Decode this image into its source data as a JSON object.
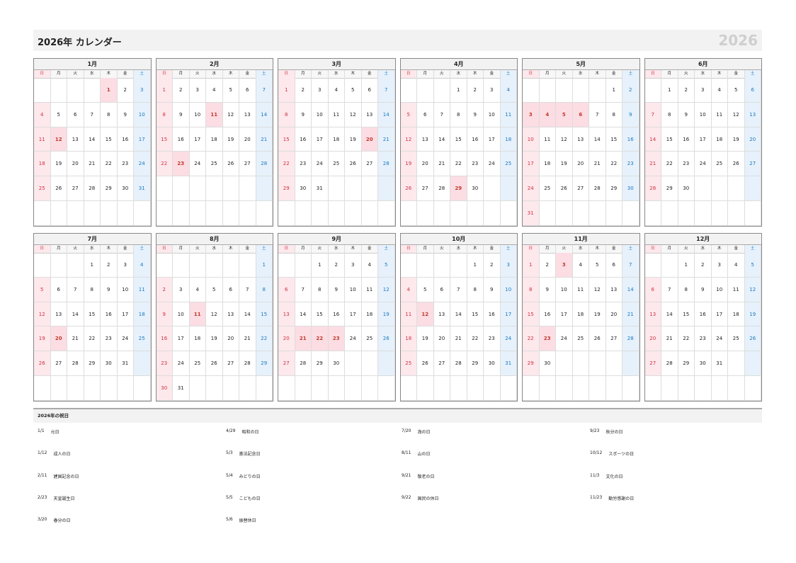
{
  "header": {
    "title": "2026年 カレンダー",
    "year": "2026"
  },
  "weekdays": [
    "日",
    "月",
    "火",
    "水",
    "木",
    "金",
    "土"
  ],
  "months": [
    {
      "name": "1月",
      "holidays": [
        1,
        12
      ],
      "weeks": [
        [
          null,
          null,
          null,
          null,
          1,
          2,
          3
        ],
        [
          4,
          5,
          6,
          7,
          8,
          9,
          10
        ],
        [
          11,
          12,
          13,
          14,
          15,
          16,
          17
        ],
        [
          18,
          19,
          20,
          21,
          22,
          23,
          24
        ],
        [
          25,
          26,
          27,
          28,
          29,
          30,
          31
        ],
        [
          null,
          null,
          null,
          null,
          null,
          null,
          null
        ]
      ]
    },
    {
      "name": "2月",
      "holidays": [
        11,
        23
      ],
      "weeks": [
        [
          1,
          2,
          3,
          4,
          5,
          6,
          7
        ],
        [
          8,
          9,
          10,
          11,
          12,
          13,
          14
        ],
        [
          15,
          16,
          17,
          18,
          19,
          20,
          21
        ],
        [
          22,
          23,
          24,
          25,
          26,
          27,
          28
        ],
        [
          null,
          null,
          null,
          null,
          null,
          null,
          null
        ],
        [
          null,
          null,
          null,
          null,
          null,
          null,
          null
        ]
      ]
    },
    {
      "name": "3月",
      "holidays": [
        20
      ],
      "weeks": [
        [
          1,
          2,
          3,
          4,
          5,
          6,
          7
        ],
        [
          8,
          9,
          10,
          11,
          12,
          13,
          14
        ],
        [
          15,
          16,
          17,
          18,
          19,
          20,
          21
        ],
        [
          22,
          23,
          24,
          25,
          26,
          27,
          28
        ],
        [
          29,
          30,
          31,
          null,
          null,
          null,
          null
        ],
        [
          null,
          null,
          null,
          null,
          null,
          null,
          null
        ]
      ]
    },
    {
      "name": "4月",
      "holidays": [
        29
      ],
      "weeks": [
        [
          null,
          null,
          null,
          1,
          2,
          3,
          4
        ],
        [
          5,
          6,
          7,
          8,
          9,
          10,
          11
        ],
        [
          12,
          13,
          14,
          15,
          16,
          17,
          18
        ],
        [
          19,
          20,
          21,
          22,
          23,
          24,
          25
        ],
        [
          26,
          27,
          28,
          29,
          30,
          null,
          null
        ],
        [
          null,
          null,
          null,
          null,
          null,
          null,
          null
        ]
      ]
    },
    {
      "name": "5月",
      "holidays": [
        3,
        4,
        5,
        6
      ],
      "weeks": [
        [
          null,
          null,
          null,
          null,
          null,
          1,
          2
        ],
        [
          3,
          4,
          5,
          6,
          7,
          8,
          9
        ],
        [
          10,
          11,
          12,
          13,
          14,
          15,
          16
        ],
        [
          17,
          18,
          19,
          20,
          21,
          22,
          23
        ],
        [
          24,
          25,
          26,
          27,
          28,
          29,
          30
        ],
        [
          31,
          null,
          null,
          null,
          null,
          null,
          null
        ]
      ]
    },
    {
      "name": "6月",
      "holidays": [],
      "weeks": [
        [
          null,
          1,
          2,
          3,
          4,
          5,
          6
        ],
        [
          7,
          8,
          9,
          10,
          11,
          12,
          13
        ],
        [
          14,
          15,
          16,
          17,
          18,
          19,
          20
        ],
        [
          21,
          22,
          23,
          24,
          25,
          26,
          27
        ],
        [
          28,
          29,
          30,
          null,
          null,
          null,
          null
        ],
        [
          null,
          null,
          null,
          null,
          null,
          null,
          null
        ]
      ]
    },
    {
      "name": "7月",
      "holidays": [
        20
      ],
      "weeks": [
        [
          null,
          null,
          null,
          1,
          2,
          3,
          4
        ],
        [
          5,
          6,
          7,
          8,
          9,
          10,
          11
        ],
        [
          12,
          13,
          14,
          15,
          16,
          17,
          18
        ],
        [
          19,
          20,
          21,
          22,
          23,
          24,
          25
        ],
        [
          26,
          27,
          28,
          29,
          30,
          31,
          null
        ],
        [
          null,
          null,
          null,
          null,
          null,
          null,
          null
        ]
      ]
    },
    {
      "name": "8月",
      "holidays": [
        11
      ],
      "weeks": [
        [
          null,
          null,
          null,
          null,
          null,
          null,
          1
        ],
        [
          2,
          3,
          4,
          5,
          6,
          7,
          8
        ],
        [
          9,
          10,
          11,
          12,
          13,
          14,
          15
        ],
        [
          16,
          17,
          18,
          19,
          20,
          21,
          22
        ],
        [
          23,
          24,
          25,
          26,
          27,
          28,
          29
        ],
        [
          30,
          31,
          null,
          null,
          null,
          null,
          null
        ]
      ]
    },
    {
      "name": "9月",
      "holidays": [
        21,
        22,
        23
      ],
      "weeks": [
        [
          null,
          null,
          1,
          2,
          3,
          4,
          5
        ],
        [
          6,
          7,
          8,
          9,
          10,
          11,
          12
        ],
        [
          13,
          14,
          15,
          16,
          17,
          18,
          19
        ],
        [
          20,
          21,
          22,
          23,
          24,
          25,
          26
        ],
        [
          27,
          28,
          29,
          30,
          null,
          null,
          null
        ],
        [
          null,
          null,
          null,
          null,
          null,
          null,
          null
        ]
      ]
    },
    {
      "name": "10月",
      "holidays": [
        12
      ],
      "weeks": [
        [
          null,
          null,
          null,
          null,
          1,
          2,
          3
        ],
        [
          4,
          5,
          6,
          7,
          8,
          9,
          10
        ],
        [
          11,
          12,
          13,
          14,
          15,
          16,
          17
        ],
        [
          18,
          19,
          20,
          21,
          22,
          23,
          24
        ],
        [
          25,
          26,
          27,
          28,
          29,
          30,
          31
        ],
        [
          null,
          null,
          null,
          null,
          null,
          null,
          null
        ]
      ]
    },
    {
      "name": "11月",
      "holidays": [
        3,
        23
      ],
      "weeks": [
        [
          1,
          2,
          3,
          4,
          5,
          6,
          7
        ],
        [
          8,
          9,
          10,
          11,
          12,
          13,
          14
        ],
        [
          15,
          16,
          17,
          18,
          19,
          20,
          21
        ],
        [
          22,
          23,
          24,
          25,
          26,
          27,
          28
        ],
        [
          29,
          30,
          null,
          null,
          null,
          null,
          null
        ],
        [
          null,
          null,
          null,
          null,
          null,
          null,
          null
        ]
      ]
    },
    {
      "name": "12月",
      "holidays": [],
      "weeks": [
        [
          null,
          null,
          1,
          2,
          3,
          4,
          5
        ],
        [
          6,
          7,
          8,
          9,
          10,
          11,
          12
        ],
        [
          13,
          14,
          15,
          16,
          17,
          18,
          19
        ],
        [
          20,
          21,
          22,
          23,
          24,
          25,
          26
        ],
        [
          27,
          28,
          29,
          30,
          31,
          null,
          null
        ],
        [
          null,
          null,
          null,
          null,
          null,
          null,
          null
        ]
      ]
    }
  ],
  "holiday_list": {
    "title": "2026年の祝日",
    "columns": [
      [
        {
          "date": "1/1",
          "name": "元日"
        },
        {
          "date": "1/12",
          "name": "成人の日"
        },
        {
          "date": "2/11",
          "name": "建国記念の日"
        },
        {
          "date": "2/23",
          "name": "天皇誕生日"
        },
        {
          "date": "3/20",
          "name": "春分の日"
        }
      ],
      [
        {
          "date": "4/29",
          "name": "昭和の日"
        },
        {
          "date": "5/3",
          "name": "憲法記念日"
        },
        {
          "date": "5/4",
          "name": "みどりの日"
        },
        {
          "date": "5/5",
          "name": "こどもの日"
        },
        {
          "date": "5/6",
          "name": "振替休日"
        }
      ],
      [
        {
          "date": "7/20",
          "name": "海の日"
        },
        {
          "date": "8/11",
          "name": "山の日"
        },
        {
          "date": "9/21",
          "name": "敬老の日"
        },
        {
          "date": "9/22",
          "name": "国民の休日"
        }
      ],
      [
        {
          "date": "9/23",
          "name": "秋分の日"
        },
        {
          "date": "10/12",
          "name": "スポーツの日"
        },
        {
          "date": "11/3",
          "name": "文化の日"
        },
        {
          "date": "11/23",
          "name": "勤労感謝の日"
        }
      ]
    ]
  }
}
